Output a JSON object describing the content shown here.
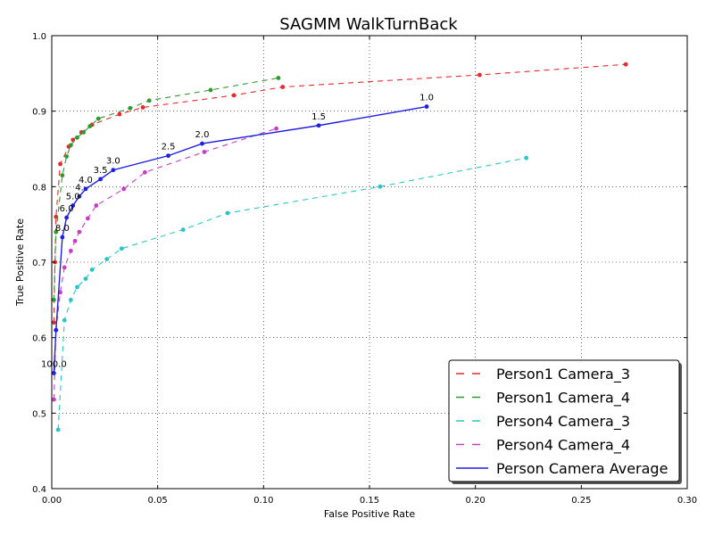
{
  "chart_data": {
    "type": "line",
    "title": "SAGMM WalkTurnBack",
    "xlabel": "False Positive Rate",
    "ylabel": "True Positive Rate",
    "xlim": [
      0.0,
      0.3
    ],
    "ylim": [
      0.4,
      1.0
    ],
    "xticks": [
      0.0,
      0.05,
      0.1,
      0.15,
      0.2,
      0.25,
      0.3
    ],
    "yticks": [
      0.4,
      0.5,
      0.6,
      0.7,
      0.8,
      0.9,
      1.0
    ],
    "xtick_labels": [
      "0.00",
      "0.05",
      "0.10",
      "0.15",
      "0.20",
      "0.25",
      "0.30"
    ],
    "ytick_labels": [
      "0.4",
      "0.5",
      "0.6",
      "0.7",
      "0.8",
      "0.9",
      "1.0"
    ],
    "grid": true,
    "legend_position": "lower-right",
    "series": [
      {
        "name": "Person1 Camera_3",
        "color": "#e8282d",
        "style": "dashed",
        "points": [
          [
            0.001,
            0.62
          ],
          [
            0.0015,
            0.7
          ],
          [
            0.002,
            0.76
          ],
          [
            0.004,
            0.83
          ],
          [
            0.008,
            0.853
          ],
          [
            0.01,
            0.862
          ],
          [
            0.014,
            0.872
          ],
          [
            0.019,
            0.882
          ],
          [
            0.032,
            0.896
          ],
          [
            0.043,
            0.905
          ],
          [
            0.086,
            0.921
          ],
          [
            0.109,
            0.932
          ],
          [
            0.202,
            0.948
          ],
          [
            0.271,
            0.962
          ]
        ]
      },
      {
        "name": "Person1 Camera_4",
        "color": "#2d9a2d",
        "style": "dashed",
        "points": [
          [
            0.001,
            0.65
          ],
          [
            0.002,
            0.74
          ],
          [
            0.005,
            0.815
          ],
          [
            0.007,
            0.84
          ],
          [
            0.009,
            0.855
          ],
          [
            0.012,
            0.865
          ],
          [
            0.015,
            0.872
          ],
          [
            0.018,
            0.88
          ],
          [
            0.022,
            0.89
          ],
          [
            0.037,
            0.904
          ],
          [
            0.046,
            0.914
          ],
          [
            0.075,
            0.928
          ],
          [
            0.107,
            0.944
          ]
        ]
      },
      {
        "name": "Person4 Camera_3",
        "color": "#26c6c6",
        "style": "dashed",
        "points": [
          [
            0.003,
            0.478
          ],
          [
            0.006,
            0.623
          ],
          [
            0.009,
            0.65
          ],
          [
            0.012,
            0.667
          ],
          [
            0.016,
            0.678
          ],
          [
            0.019,
            0.69
          ],
          [
            0.026,
            0.704
          ],
          [
            0.033,
            0.718
          ],
          [
            0.062,
            0.743
          ],
          [
            0.083,
            0.765
          ],
          [
            0.155,
            0.8
          ],
          [
            0.224,
            0.838
          ]
        ]
      },
      {
        "name": "Person4 Camera_4",
        "color": "#c83cc8",
        "style": "dashed",
        "points": [
          [
            0.001,
            0.518
          ],
          [
            0.002,
            0.61
          ],
          [
            0.004,
            0.66
          ],
          [
            0.006,
            0.693
          ],
          [
            0.009,
            0.715
          ],
          [
            0.011,
            0.728
          ],
          [
            0.013,
            0.74
          ],
          [
            0.017,
            0.758
          ],
          [
            0.021,
            0.775
          ],
          [
            0.034,
            0.797
          ],
          [
            0.044,
            0.819
          ],
          [
            0.072,
            0.846
          ],
          [
            0.106,
            0.877
          ]
        ]
      },
      {
        "name": "Person Camera Average",
        "color": "#1f1fe0",
        "style": "solid",
        "points": [
          [
            0.001,
            0.553
          ],
          [
            0.002,
            0.61
          ],
          [
            0.005,
            0.733
          ],
          [
            0.007,
            0.759
          ],
          [
            0.01,
            0.775
          ],
          [
            0.013,
            0.787
          ],
          [
            0.016,
            0.797
          ],
          [
            0.023,
            0.81
          ],
          [
            0.029,
            0.822
          ],
          [
            0.055,
            0.841
          ],
          [
            0.071,
            0.857
          ],
          [
            0.126,
            0.881
          ],
          [
            0.177,
            0.906
          ]
        ]
      }
    ],
    "annotations": [
      {
        "text": "1.0",
        "x": 0.177,
        "y": 0.906
      },
      {
        "text": "1.5",
        "x": 0.126,
        "y": 0.881
      },
      {
        "text": "2.0",
        "x": 0.071,
        "y": 0.857
      },
      {
        "text": "2.5",
        "x": 0.055,
        "y": 0.841
      },
      {
        "text": "3.0",
        "x": 0.029,
        "y": 0.822
      },
      {
        "text": "3.5",
        "x": 0.023,
        "y": 0.81
      },
      {
        "text": "4.0",
        "x": 0.016,
        "y": 0.797
      },
      {
        "text": "4.",
        "x": 0.013,
        "y": 0.787
      },
      {
        "text": "5.0",
        "x": 0.01,
        "y": 0.775
      },
      {
        "text": "6.0",
        "x": 0.007,
        "y": 0.759
      },
      {
        "text": "8.0",
        "x": 0.005,
        "y": 0.733
      },
      {
        "text": "100.0",
        "x": 0.001,
        "y": 0.553
      }
    ]
  }
}
